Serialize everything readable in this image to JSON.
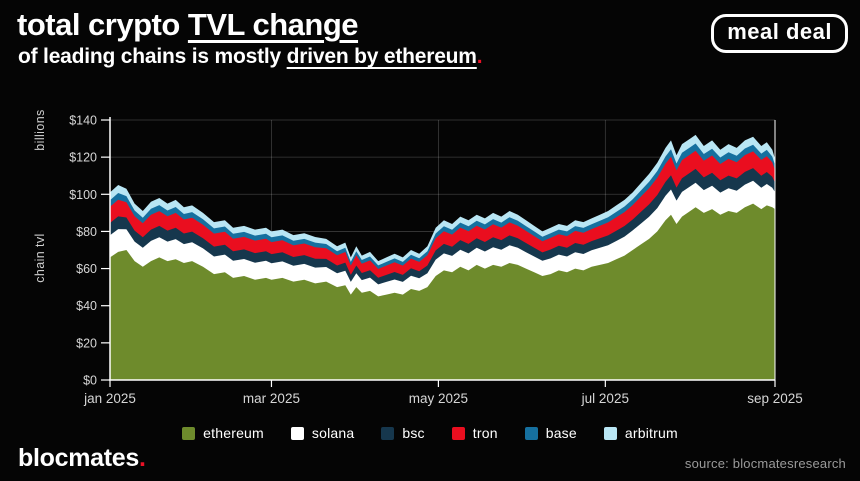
{
  "header": {
    "title_plain": "total crypto ",
    "title_underlined": "TVL change",
    "subtitle_plain": "of leading chains is mostly ",
    "subtitle_underlined": "driven by ethereum",
    "subtitle_period": ".",
    "badge_text": "meal deal"
  },
  "footer": {
    "brand_text": "blocmates",
    "brand_period": ".",
    "source_text": "source: blocmatesresearch"
  },
  "colors": {
    "background": "#050505",
    "accent_red": "#ea1126",
    "axis": "#ffffff",
    "grid": "rgba(255,255,255,0.22)",
    "tick_label": "#d6d6d6"
  },
  "chart_data": {
    "type": "area",
    "stacked": true,
    "units": "USD billions (chain tvl)",
    "y_axis_label_top": "billions",
    "y_axis_label_bottom": "chain tvl",
    "ylim": [
      0,
      140
    ],
    "grid": true,
    "legend_position": "bottom",
    "y_ticks": [
      {
        "value": 0,
        "label": "$0"
      },
      {
        "value": 20,
        "label": "$20"
      },
      {
        "value": 40,
        "label": "$40"
      },
      {
        "value": 60,
        "label": "$60"
      },
      {
        "value": 80,
        "label": "$80"
      },
      {
        "value": 100,
        "label": "$100"
      },
      {
        "value": 120,
        "label": "$120"
      },
      {
        "value": 140,
        "label": "$140"
      }
    ],
    "x_ticks": [
      {
        "day": 0,
        "label": "jan 2025"
      },
      {
        "day": 59,
        "label": "mar 2025"
      },
      {
        "day": 120,
        "label": "may 2025"
      },
      {
        "day": 181,
        "label": "jul 2025"
      },
      {
        "day": 243,
        "label": "sep 2025"
      }
    ],
    "series": [
      {
        "name": "ethereum",
        "color": "#6e8b2c"
      },
      {
        "name": "solana",
        "color": "#ffffff"
      },
      {
        "name": "bsc",
        "color": "#16374d"
      },
      {
        "name": "tron",
        "color": "#ea0e1f"
      },
      {
        "name": "base",
        "color": "#16709f"
      },
      {
        "name": "arbitrum",
        "color": "#b9e6f4"
      }
    ],
    "band_weights_of_non_ethereum": {
      "solana": 0.34,
      "bsc": 0.19,
      "tron": 0.25,
      "base": 0.1,
      "arbitrum": 0.12
    },
    "points_day_eth_othersTotal": [
      [
        0,
        66,
        35
      ],
      [
        3,
        69,
        36
      ],
      [
        6,
        70,
        33
      ],
      [
        9,
        64,
        31
      ],
      [
        12,
        61,
        30
      ],
      [
        15,
        64,
        32
      ],
      [
        18,
        66,
        32
      ],
      [
        21,
        64,
        31
      ],
      [
        24,
        65,
        32
      ],
      [
        27,
        63,
        30
      ],
      [
        30,
        64,
        30
      ],
      [
        34,
        61,
        29
      ],
      [
        38,
        57,
        28
      ],
      [
        42,
        58,
        28
      ],
      [
        45,
        55,
        27
      ],
      [
        49,
        56,
        27
      ],
      [
        53,
        54,
        27
      ],
      [
        57,
        55,
        27
      ],
      [
        59,
        54,
        26
      ],
      [
        63,
        55,
        26
      ],
      [
        67,
        53,
        25
      ],
      [
        71,
        54,
        25
      ],
      [
        75,
        52,
        25
      ],
      [
        79,
        53,
        23
      ],
      [
        83,
        50,
        22
      ],
      [
        86,
        51,
        23
      ],
      [
        88,
        46,
        20
      ],
      [
        90,
        50,
        22
      ],
      [
        92,
        47,
        20
      ],
      [
        95,
        48,
        21
      ],
      [
        98,
        45,
        19
      ],
      [
        101,
        46,
        20
      ],
      [
        104,
        47,
        21
      ],
      [
        107,
        46,
        20
      ],
      [
        110,
        49,
        21
      ],
      [
        113,
        48,
        20
      ],
      [
        116,
        50,
        22
      ],
      [
        119,
        56,
        26
      ],
      [
        122,
        59,
        27
      ],
      [
        125,
        58,
        26
      ],
      [
        128,
        61,
        27
      ],
      [
        131,
        59,
        27
      ],
      [
        134,
        62,
        27
      ],
      [
        137,
        60,
        27
      ],
      [
        140,
        62,
        28
      ],
      [
        143,
        61,
        27
      ],
      [
        146,
        63,
        28
      ],
      [
        149,
        62,
        27
      ],
      [
        152,
        60,
        26
      ],
      [
        155,
        58,
        25
      ],
      [
        158,
        56,
        24
      ],
      [
        161,
        57,
        25
      ],
      [
        164,
        59,
        25
      ],
      [
        167,
        58,
        25
      ],
      [
        170,
        60,
        26
      ],
      [
        173,
        59,
        26
      ],
      [
        176,
        61,
        26
      ],
      [
        179,
        62,
        27
      ],
      [
        182,
        63,
        28
      ],
      [
        185,
        65,
        29
      ],
      [
        188,
        67,
        30
      ],
      [
        191,
        70,
        31
      ],
      [
        194,
        73,
        33
      ],
      [
        197,
        76,
        35
      ],
      [
        200,
        80,
        37
      ],
      [
        203,
        86,
        39
      ],
      [
        205,
        89,
        40
      ],
      [
        207,
        84,
        37
      ],
      [
        209,
        88,
        39
      ],
      [
        212,
        91,
        39
      ],
      [
        214,
        93,
        39
      ],
      [
        217,
        90,
        36
      ],
      [
        220,
        92,
        37
      ],
      [
        223,
        89,
        35
      ],
      [
        226,
        91,
        36
      ],
      [
        229,
        90,
        35
      ],
      [
        232,
        93,
        36
      ],
      [
        235,
        95,
        36
      ],
      [
        238,
        92,
        34
      ],
      [
        240,
        94,
        34
      ],
      [
        242,
        93,
        31
      ],
      [
        243,
        92,
        27
      ]
    ]
  }
}
